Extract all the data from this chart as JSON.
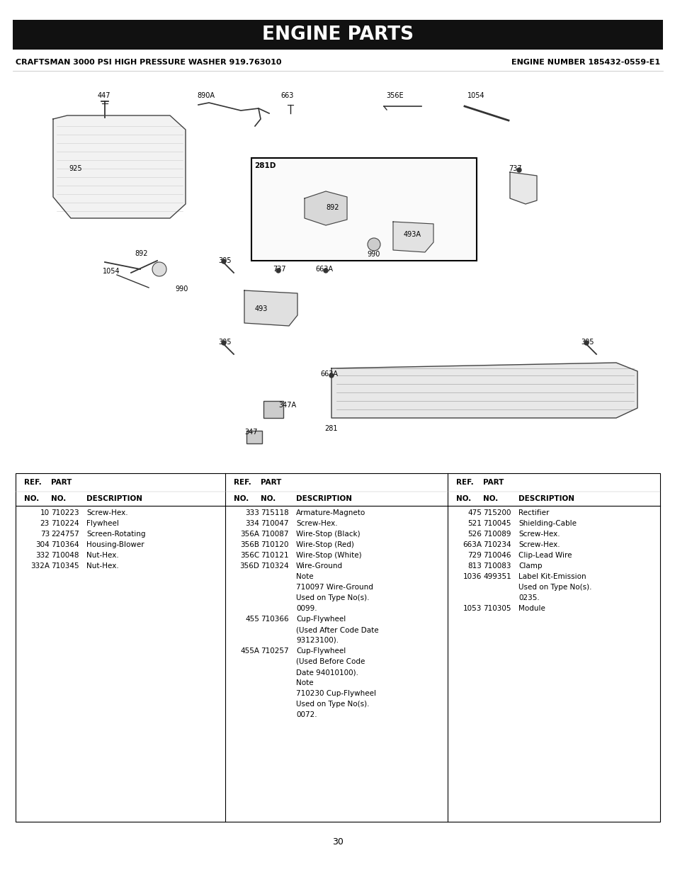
{
  "title": "ENGINE PARTS",
  "subtitle_left": "CRAFTSMAN 3000 PSI HIGH PRESSURE WASHER 919.763010",
  "subtitle_right": "ENGINE NUMBER 185432-0559-E1",
  "page_number": "30",
  "table": {
    "col1": {
      "rows": [
        [
          "10",
          "710223",
          "Screw-Hex."
        ],
        [
          "23",
          "710224",
          "Flywheel"
        ],
        [
          "73",
          "224757",
          "Screen-Rotating"
        ],
        [
          "304",
          "710364",
          "Housing-Blower"
        ],
        [
          "332",
          "710048",
          "Nut-Hex."
        ],
        [
          "332A",
          "710345",
          "Nut-Hex."
        ]
      ]
    },
    "col2": {
      "rows": [
        [
          "333",
          "715118",
          "Armature-Magneto"
        ],
        [
          "334",
          "710047",
          "Screw-Hex."
        ],
        [
          "356A",
          "710087",
          "Wire-Stop (Black)"
        ],
        [
          "356B",
          "710120",
          "Wire-Stop (Red)"
        ],
        [
          "356C",
          "710121",
          "Wire-Stop (White)"
        ],
        [
          "356D",
          "710324",
          "Wire-Ground"
        ],
        [
          "",
          "",
          "Note"
        ],
        [
          "",
          "",
          "710097 Wire-Ground"
        ],
        [
          "",
          "",
          "Used on Type No(s)."
        ],
        [
          "",
          "",
          "0099."
        ],
        [
          "455",
          "710366",
          "Cup-Flywheel"
        ],
        [
          "",
          "",
          "(Used After Code Date"
        ],
        [
          "",
          "",
          "93123100)."
        ],
        [
          "455A",
          "710257",
          "Cup-Flywheel"
        ],
        [
          "",
          "",
          "(Used Before Code"
        ],
        [
          "",
          "",
          "Date 94010100)."
        ],
        [
          "",
          "",
          "Note"
        ],
        [
          "",
          "",
          "710230 Cup-Flywheel"
        ],
        [
          "",
          "",
          "Used on Type No(s)."
        ],
        [
          "",
          "",
          "0072."
        ]
      ]
    },
    "col3": {
      "rows": [
        [
          "475",
          "715200",
          "Rectifier"
        ],
        [
          "521",
          "710045",
          "Shielding-Cable"
        ],
        [
          "526",
          "710089",
          "Screw-Hex."
        ],
        [
          "663A",
          "710234",
          "Screw-Hex."
        ],
        [
          "729",
          "710046",
          "Clip-Lead Wire"
        ],
        [
          "813",
          "710083",
          "Clamp"
        ],
        [
          "1036",
          "499351",
          "Label Kit-Emission"
        ],
        [
          "",
          "",
          "Used on Type No(s)."
        ],
        [
          "",
          "",
          "0235."
        ],
        [
          "1053",
          "710305",
          "Module"
        ]
      ]
    }
  },
  "bg_color": "#ffffff",
  "title_bg": "#111111",
  "title_color": "#ffffff",
  "text_color": "#000000"
}
